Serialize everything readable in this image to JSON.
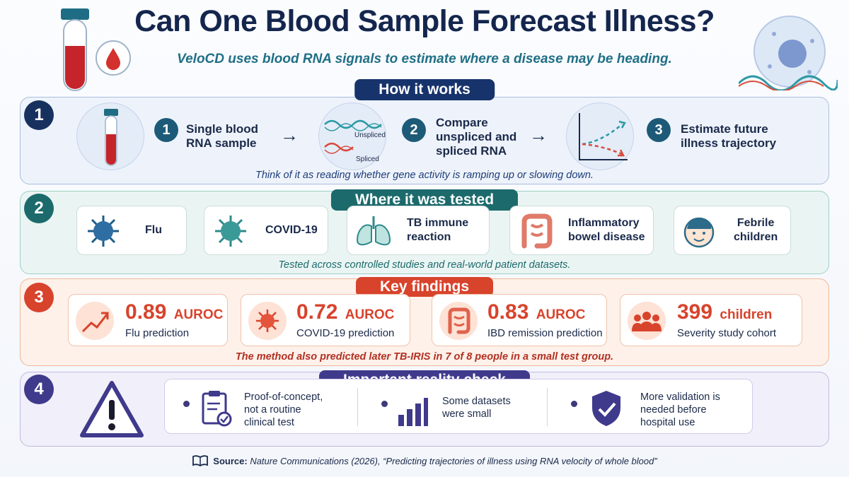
{
  "header": {
    "title": "Can One Blood Sample Forecast Illness?",
    "subtitle": "VeloCD uses blood RNA signals to estimate where a disease may be heading."
  },
  "section1": {
    "number": "1",
    "heading": "How it works",
    "steps": [
      {
        "num": "1",
        "line1": "Single blood",
        "line2": "RNA sample"
      },
      {
        "num": "2",
        "line1": "Compare",
        "line2": "unspliced and",
        "line3": "spliced RNA"
      },
      {
        "num": "3",
        "line1": "Estimate future",
        "line2": "illness trajectory"
      }
    ],
    "strand_labels": {
      "unspliced": "Unspliced",
      "spliced": "Spliced"
    },
    "note": "Think of it as reading whether gene activity is ramping up or slowing down."
  },
  "section2": {
    "number": "2",
    "heading": "Where it was tested",
    "items": [
      {
        "line1": "Flu",
        "icon": "virus-icon"
      },
      {
        "line1": "COVID-19",
        "icon": "coronavirus-icon"
      },
      {
        "line1": "TB immune",
        "line2": "reaction",
        "icon": "lungs-icon"
      },
      {
        "line1": "Inflammatory",
        "line2": "bowel disease",
        "icon": "intestine-icon"
      },
      {
        "line1": "Febrile",
        "line2": "children",
        "icon": "child-face-icon"
      }
    ],
    "note": "Tested across controlled studies and real-world patient datasets."
  },
  "section3": {
    "number": "3",
    "heading": "Key findings",
    "findings": [
      {
        "value": "0.89",
        "unit": "AUROC",
        "desc": "Flu prediction",
        "icon": "trend-up-icon"
      },
      {
        "value": "0.72",
        "unit": "AUROC",
        "desc": "COVID-19 prediction",
        "icon": "coronavirus-icon"
      },
      {
        "value": "0.83",
        "unit": "AUROC",
        "desc": "IBD remission prediction",
        "icon": "intestine-icon"
      },
      {
        "value": "399",
        "unit": "children",
        "desc": "Severity study cohort",
        "icon": "people-group-icon"
      }
    ],
    "note": "The method also predicted later TB-IRIS in 7 of 8 people in a small test group."
  },
  "section4": {
    "number": "4",
    "heading": "Important reality check",
    "items": [
      {
        "line1": "Proof-of-concept,",
        "line2": "not a routine",
        "line3": "clinical test",
        "icon": "clipboard-check-icon"
      },
      {
        "line1": "Some datasets",
        "line2": "were small",
        "icon": "bar-chart-icon"
      },
      {
        "line1": "More validation is",
        "line2": "needed before",
        "line3": "hospital use",
        "icon": "shield-check-icon"
      }
    ]
  },
  "source": {
    "label": "Source:",
    "text": "Nature Communications (2026), “Predicting trajectories of illness using RNA velocity of whole blood”"
  },
  "colors": {
    "navy": "#14264d",
    "teal": "#1f6f86",
    "section1": "#1d3c78",
    "section2": "#1c6a6c",
    "section3": "#d8432c",
    "section4": "#3f3a8c"
  }
}
